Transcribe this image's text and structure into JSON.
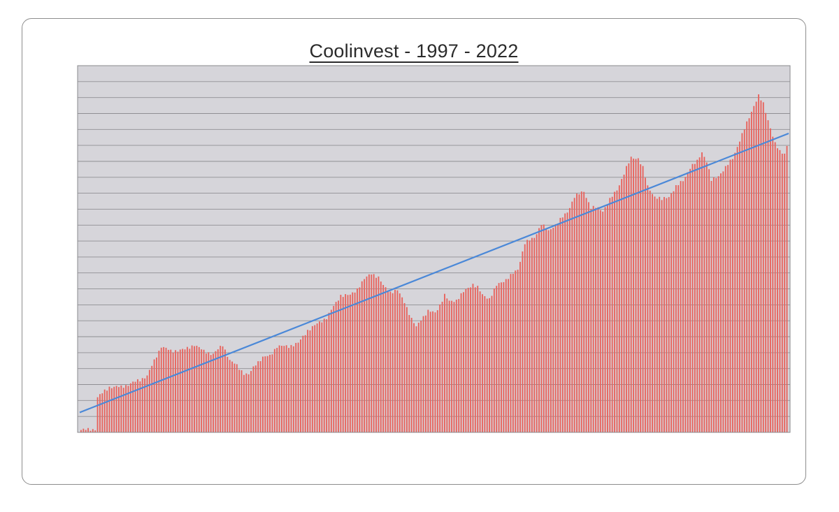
{
  "chart_data": {
    "type": "bar",
    "title": "Coolinvest - 1997 - 2022",
    "xlabel": "",
    "ylabel": "",
    "x_range": [
      "1997",
      "2022"
    ],
    "bar_count": 300,
    "ylim": [
      0,
      23
    ],
    "gridlines": 22,
    "grid": true,
    "legend": "none",
    "colors": {
      "bar": "#e8625c",
      "bar_highlight": "#fbe1df",
      "plot_background": "#d6d5da",
      "gridline": "#8f8f93",
      "trendline": "#4a88d8"
    },
    "trendline": {
      "type": "linear",
      "start": 1.25,
      "end": 18.75
    },
    "keypoints": [
      [
        0,
        0.15
      ],
      [
        6,
        0.2
      ],
      [
        7,
        2.2
      ],
      [
        12,
        2.85
      ],
      [
        17,
        2.85
      ],
      [
        20,
        3.0
      ],
      [
        25,
        3.3
      ],
      [
        28,
        3.55
      ],
      [
        32,
        4.8
      ],
      [
        34,
        5.4
      ],
      [
        38,
        5.1
      ],
      [
        44,
        5.2
      ],
      [
        48,
        5.5
      ],
      [
        52,
        5.1
      ],
      [
        56,
        4.9
      ],
      [
        60,
        5.5
      ],
      [
        63,
        4.5
      ],
      [
        66,
        4.2
      ],
      [
        69,
        3.7
      ],
      [
        71,
        3.6
      ],
      [
        74,
        4.3
      ],
      [
        77,
        4.7
      ],
      [
        80,
        4.8
      ],
      [
        83,
        5.4
      ],
      [
        88,
        5.4
      ],
      [
        92,
        5.6
      ],
      [
        96,
        6.4
      ],
      [
        100,
        6.8
      ],
      [
        104,
        7.2
      ],
      [
        107,
        7.9
      ],
      [
        110,
        8.6
      ],
      [
        114,
        8.6
      ],
      [
        117,
        9.0
      ],
      [
        120,
        9.6
      ],
      [
        123,
        10.0
      ],
      [
        126,
        9.7
      ],
      [
        128,
        9.2
      ],
      [
        131,
        8.8
      ],
      [
        134,
        8.9
      ],
      [
        137,
        8.2
      ],
      [
        140,
        7.1
      ],
      [
        142,
        6.6
      ],
      [
        144,
        7.1
      ],
      [
        147,
        7.6
      ],
      [
        150,
        7.5
      ],
      [
        152,
        8.0
      ],
      [
        154,
        8.6
      ],
      [
        156,
        8.2
      ],
      [
        159,
        8.3
      ],
      [
        162,
        8.8
      ],
      [
        166,
        9.3
      ],
      [
        168,
        9.1
      ],
      [
        170,
        8.6
      ],
      [
        173,
        8.4
      ],
      [
        176,
        9.2
      ],
      [
        180,
        9.6
      ],
      [
        185,
        10.2
      ],
      [
        188,
        11.9
      ],
      [
        192,
        12.2
      ],
      [
        195,
        13.1
      ],
      [
        198,
        12.6
      ],
      [
        202,
        13.2
      ],
      [
        206,
        13.8
      ],
      [
        209,
        14.8
      ],
      [
        213,
        15.1
      ],
      [
        216,
        14.1
      ],
      [
        218,
        14.1
      ],
      [
        221,
        13.9
      ],
      [
        224,
        14.6
      ],
      [
        227,
        15.2
      ],
      [
        231,
        16.6
      ],
      [
        233,
        17.2
      ],
      [
        236,
        17.2
      ],
      [
        238,
        16.6
      ],
      [
        240,
        15.4
      ],
      [
        243,
        14.8
      ],
      [
        246,
        14.6
      ],
      [
        249,
        14.8
      ],
      [
        252,
        15.4
      ],
      [
        255,
        15.8
      ],
      [
        258,
        16.6
      ],
      [
        261,
        17.0
      ],
      [
        263,
        17.6
      ],
      [
        265,
        17.0
      ],
      [
        267,
        15.8
      ],
      [
        270,
        16.1
      ],
      [
        273,
        16.6
      ],
      [
        276,
        17.2
      ],
      [
        279,
        18.3
      ],
      [
        282,
        19.4
      ],
      [
        285,
        20.5
      ],
      [
        287,
        21.1
      ],
      [
        289,
        20.6
      ],
      [
        291,
        19.6
      ],
      [
        294,
        18.1
      ],
      [
        296,
        17.6
      ],
      [
        298,
        17.5
      ],
      [
        299,
        18.0
      ]
    ]
  }
}
